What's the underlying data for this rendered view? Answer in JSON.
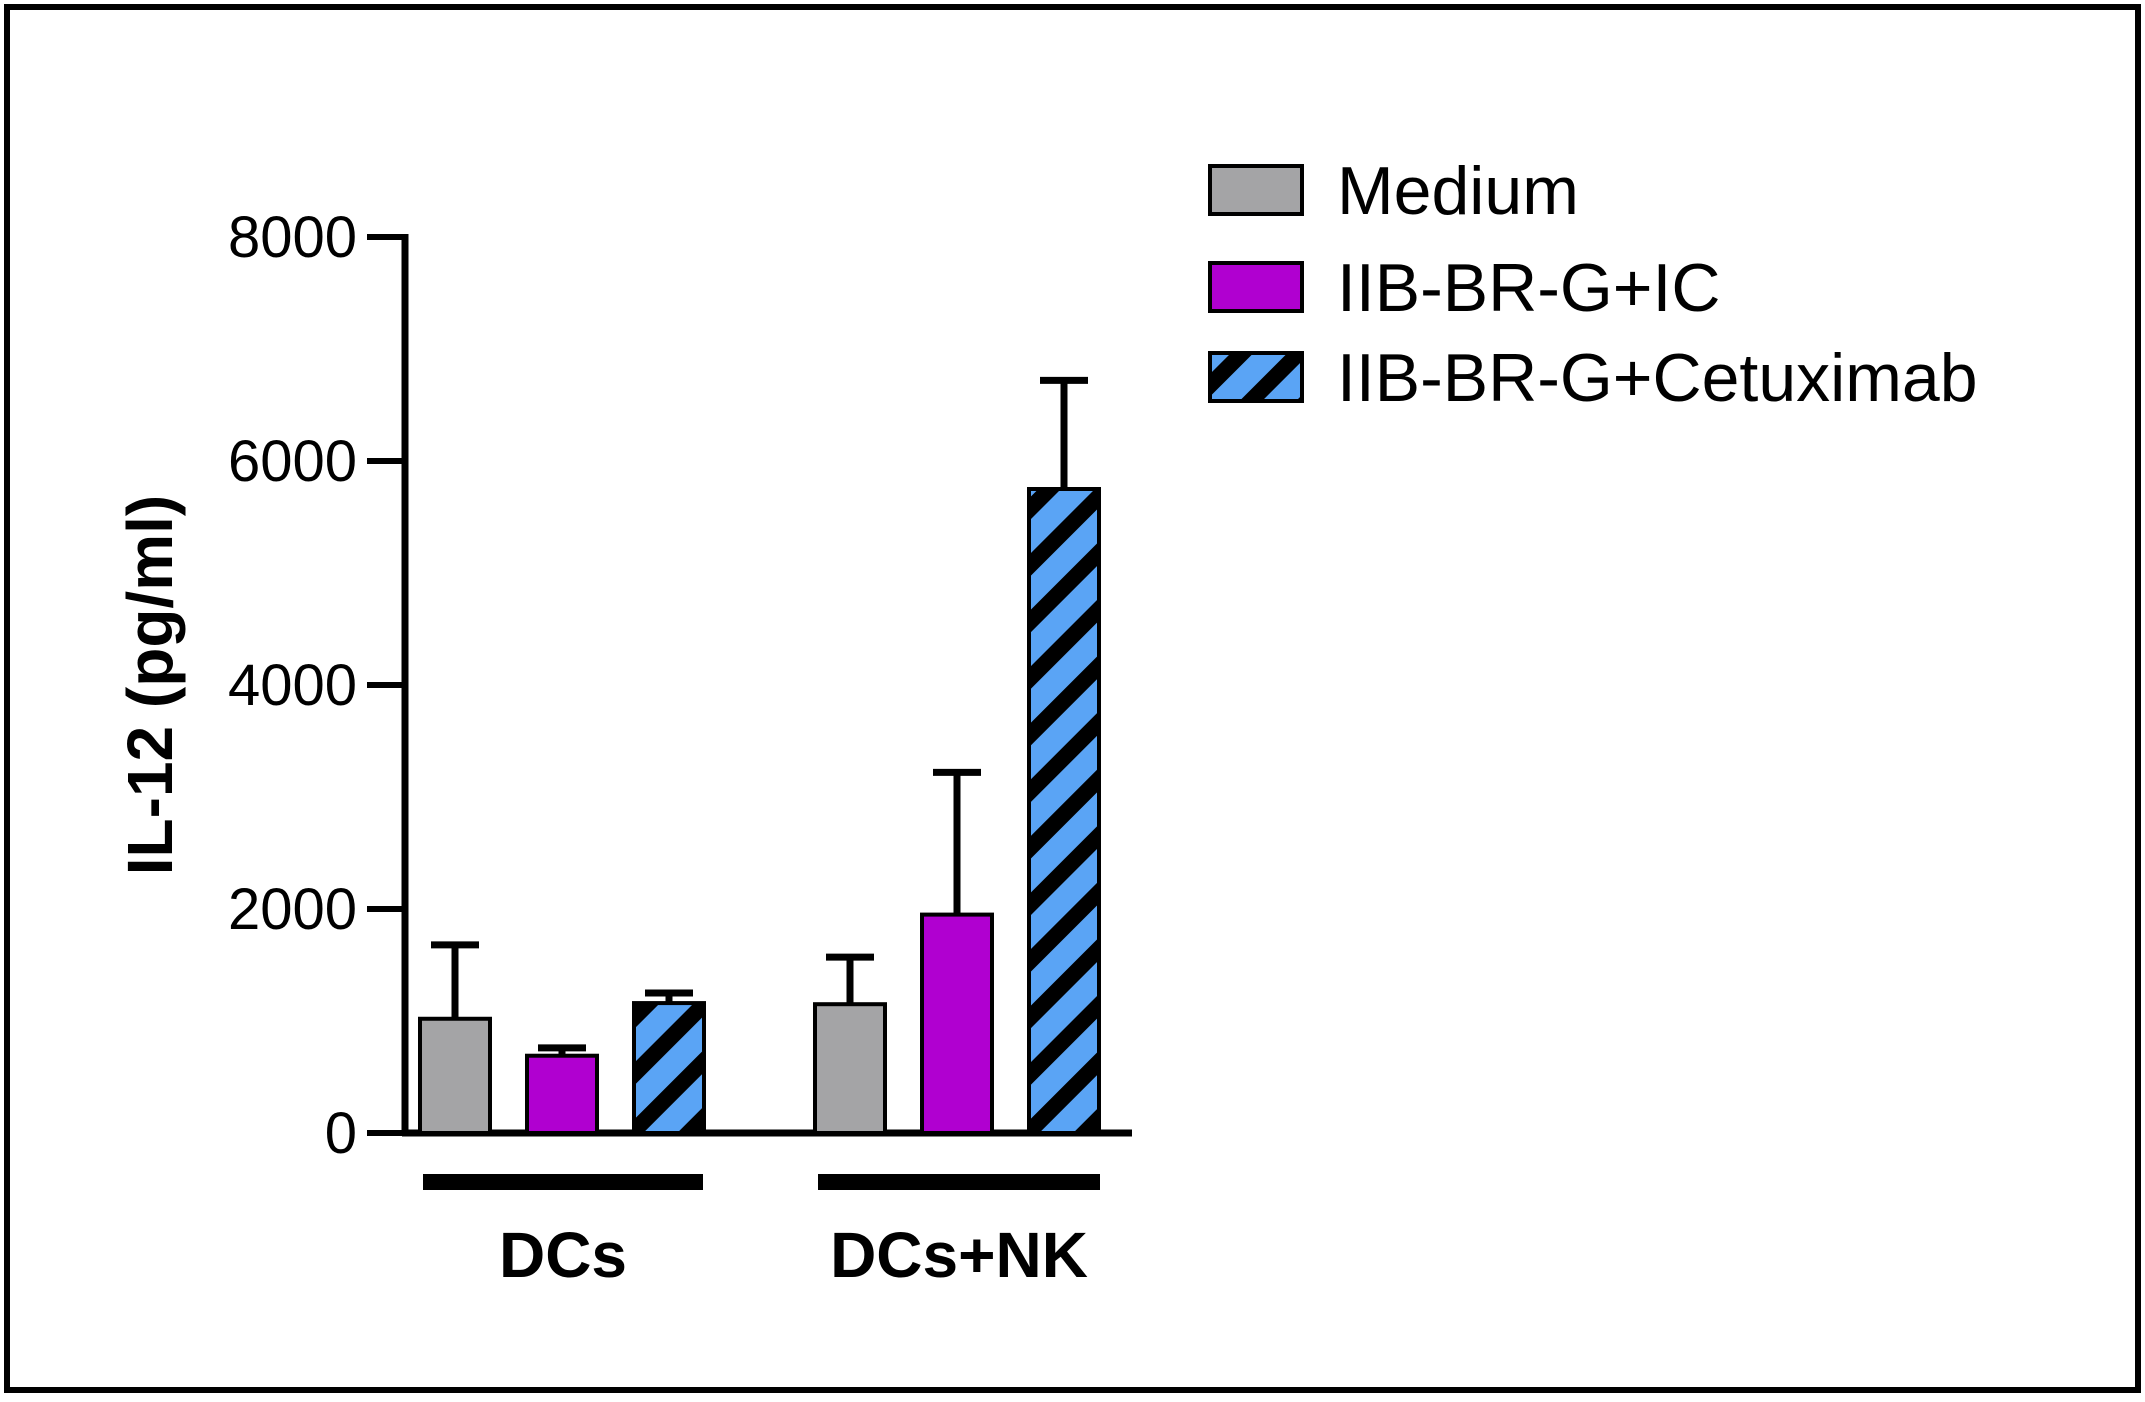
{
  "chart_data": {
    "type": "bar",
    "title": "",
    "xlabel": "",
    "ylabel": "IL-12 (pg/ml)",
    "ylim": [
      0,
      8000
    ],
    "yticks": [
      0,
      2000,
      4000,
      6000,
      8000
    ],
    "yticks_labels": [
      "0",
      "2000",
      "4000",
      "6000",
      "8000"
    ],
    "categories": [
      "DCs",
      "DCs+NK"
    ],
    "legend_position": "top-right",
    "grid": false,
    "series": [
      {
        "name": "Medium",
        "color": "#a4a4a6",
        "pattern": "solid",
        "values": [
          1020,
          1150
        ],
        "errors": [
          660,
          420
        ]
      },
      {
        "name": "IIB-BR-G+IC",
        "color": "#b000d0",
        "pattern": "solid",
        "values": [
          690,
          1950
        ],
        "errors": [
          70,
          1270
        ]
      },
      {
        "name": "IIB-BR-G+Cetuximab",
        "color": "#5aa4f5",
        "pattern": "hatched",
        "values": [
          1160,
          5750
        ],
        "errors": [
          90,
          970
        ]
      }
    ]
  }
}
